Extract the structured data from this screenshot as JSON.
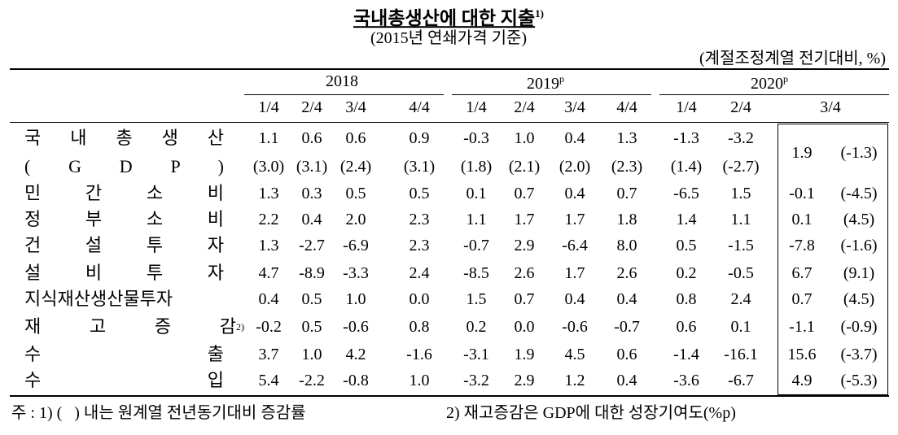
{
  "title": {
    "text": "국내총생산에 대한 지출",
    "note": "1)"
  },
  "subtitle": "(2015년 연쇄가격 기준)",
  "unit": "(계절조정계열 전기대비, %)",
  "header": {
    "years": [
      {
        "year": "2018"
      },
      {
        "year": "2019",
        "mark": "p"
      },
      {
        "year": "2020",
        "mark": "p"
      }
    ],
    "quarters": [
      "1/4",
      "2/4",
      "3/4",
      "4/4",
      "1/4",
      "2/4",
      "3/4",
      "4/4",
      "1/4",
      "2/4",
      "3/4"
    ]
  },
  "gdp": {
    "label": [
      "국 내 총 생 산",
      "( G D P )"
    ],
    "values": [
      "1.1",
      "0.6",
      "0.6",
      "0.9",
      "-0.3",
      "1.0",
      "0.4",
      "1.3",
      "-1.3",
      "-3.2"
    ],
    "yoy": [
      "(3.0)",
      "(3.1)",
      "(2.4)",
      "(3.1)",
      "(1.8)",
      "(2.1)",
      "(2.0)",
      "(2.3)",
      "(1.4)",
      "(-2.7)"
    ],
    "latest": "1.9",
    "latest_yoy": "(-1.3)"
  },
  "rows": [
    {
      "label": "민 간 소 비",
      "values": [
        "1.3",
        "0.3",
        "0.5",
        "0.5",
        "0.1",
        "0.7",
        "0.4",
        "0.7",
        "-6.5",
        "1.5"
      ],
      "latest": "-0.1",
      "latest_yoy": "(-4.5)"
    },
    {
      "label": "정 부 소 비",
      "values": [
        "2.2",
        "0.4",
        "2.0",
        "2.3",
        "1.1",
        "1.7",
        "1.7",
        "1.8",
        "1.4",
        "1.1"
      ],
      "latest": "0.1",
      "latest_yoy": "(4.5)"
    },
    {
      "label": "건 설 투 자",
      "values": [
        "1.3",
        "-2.7",
        "-6.9",
        "2.3",
        "-0.7",
        "2.9",
        "-6.4",
        "8.0",
        "0.5",
        "-1.5"
      ],
      "latest": "-7.8",
      "latest_yoy": "(-1.6)"
    },
    {
      "label": "설 비 투 자",
      "values": [
        "4.7",
        "-8.9",
        "-3.3",
        "2.4",
        "-8.5",
        "2.6",
        "1.7",
        "2.6",
        "0.2",
        "-0.5"
      ],
      "latest": "6.7",
      "latest_yoy": "(9.1)"
    },
    {
      "label": "지식재산생산물투자",
      "values": [
        "0.4",
        "0.5",
        "1.0",
        "0.0",
        "1.5",
        "0.7",
        "0.4",
        "0.4",
        "0.8",
        "2.4"
      ],
      "latest": "0.7",
      "latest_yoy": "(4.5)"
    },
    {
      "label": "재 고 증 감",
      "note": "2)",
      "values": [
        "-0.2",
        "0.5",
        "-0.6",
        "0.8",
        "0.2",
        "0.0",
        "-0.6",
        "-0.7",
        "0.6",
        "0.1"
      ],
      "latest": "-1.1",
      "latest_yoy": "(-0.9)"
    },
    {
      "label": "수 출",
      "values": [
        "3.7",
        "1.0",
        "4.2",
        "-1.6",
        "-3.1",
        "1.9",
        "4.5",
        "0.6",
        "-1.4",
        "-16.1"
      ],
      "latest": "15.6",
      "latest_yoy": "(-3.7)"
    },
    {
      "label": "수 입",
      "values": [
        "5.4",
        "-2.2",
        "-0.8",
        "1.0",
        "-3.2",
        "2.9",
        "1.2",
        "0.4",
        "-3.6",
        "-6.7"
      ],
      "latest": "4.9",
      "latest_yoy": "(-5.3)"
    }
  ],
  "footnotes": [
    "주 : 1) (   ) 내는 원계열 전년동기대비 증감률",
    "2) 재고증감은 GDP에 대한 성장기여도(%p)"
  ]
}
